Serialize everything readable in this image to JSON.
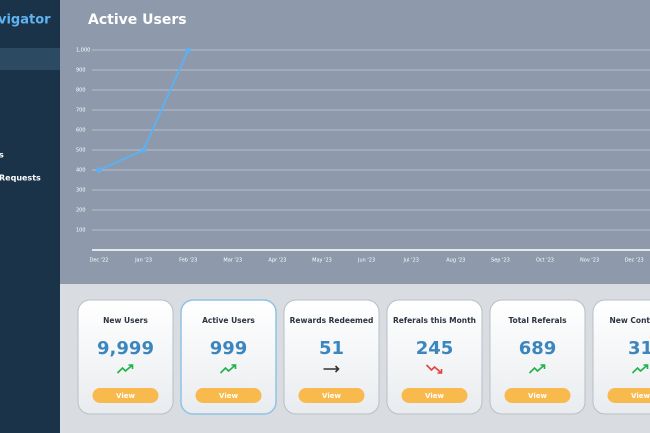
{
  "sidebar": {
    "logo": "vigator",
    "items": [
      "s",
      "Requests"
    ]
  },
  "chart_data": {
    "type": "line",
    "title": "Active Users",
    "x": [
      "Dec '22",
      "Jan '23",
      "Feb '23",
      "Mar '23",
      "Apr '23",
      "May '23",
      "Jun '23",
      "Jul '23",
      "Aug '23",
      "Sep '23",
      "Oct '23",
      "Nov '23",
      "Dec '23"
    ],
    "series": [
      {
        "name": "Active Users",
        "color": "#5db0f2",
        "values": [
          400,
          500,
          1000,
          null,
          null,
          null,
          null,
          null,
          null,
          null,
          null,
          null,
          null
        ]
      }
    ],
    "ylim": [
      0,
      1000
    ],
    "yticks": [
      100,
      200,
      300,
      400,
      500,
      600,
      700,
      800,
      900,
      {
        "value": 1000,
        "label": "1,000"
      }
    ],
    "grid": true
  },
  "cards": [
    {
      "title": "New Users",
      "value": "9,999",
      "trend": "up",
      "button": "View"
    },
    {
      "title": "Active Users",
      "value": "999",
      "trend": "up",
      "button": "View",
      "selected": true
    },
    {
      "title": "Rewards Redeemed",
      "value": "51",
      "trend": "flat",
      "button": "View"
    },
    {
      "title": "Referals this Month",
      "value": "245",
      "trend": "down",
      "button": "View"
    },
    {
      "title": "Total Referals",
      "value": "689",
      "trend": "up",
      "button": "View"
    },
    {
      "title": "New Contact R",
      "value": "31",
      "trend": "up",
      "button": "View"
    }
  ]
}
